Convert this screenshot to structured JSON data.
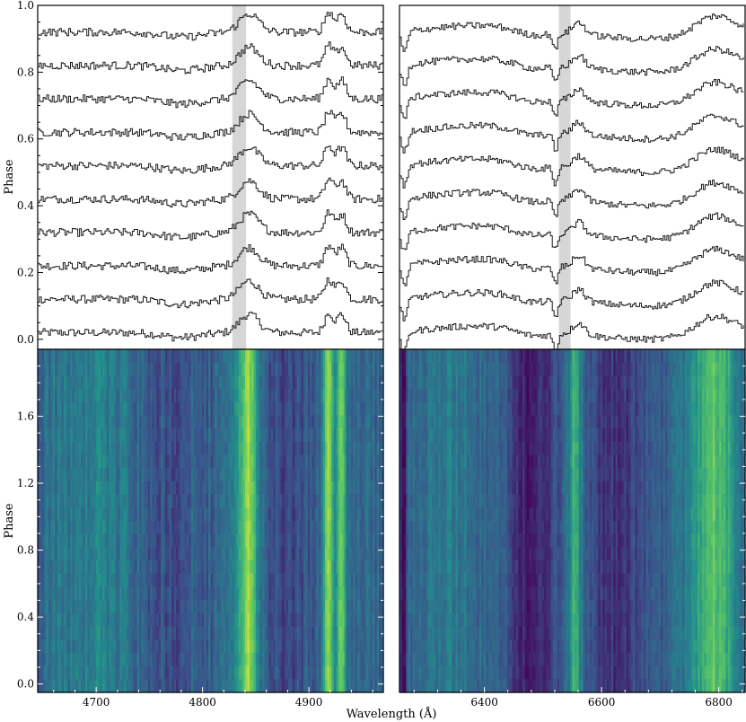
{
  "figure": {
    "xlabel": "Wavelength (Å)"
  },
  "colors": {
    "spectrum_line": "#1a1a1a",
    "highlight_band": "#b4b4b4",
    "frame": "#000000",
    "colormap": [
      "#440154",
      "#3b528b",
      "#21918c",
      "#5ec962",
      "#fde725"
    ]
  },
  "chart_data": [
    {
      "id": "top-left",
      "type": "line",
      "title": "",
      "xlabel": "",
      "ylabel": "Phase",
      "xlim": [
        4645,
        4970
      ],
      "ylim": [
        -0.03,
        1.0
      ],
      "yticks": [
        0.0,
        0.2,
        0.4,
        0.6,
        0.8,
        1.0
      ],
      "ytick_labels": [
        "0.0",
        "0.2",
        "0.4",
        "0.6",
        "0.8",
        "1.0"
      ],
      "offsets": [
        0.0,
        0.1,
        0.2,
        0.3,
        0.4,
        0.5,
        0.6,
        0.7,
        0.8,
        0.9
      ],
      "highlight_band": [
        4828,
        4841
      ],
      "features": [
        {
          "center": 4843,
          "width": 9,
          "depth": 0.055
        },
        {
          "center": 4918,
          "width": 4,
          "depth": 0.06
        },
        {
          "center": 4930,
          "width": 4,
          "depth": 0.055
        },
        {
          "center": 4780,
          "width": 18,
          "depth": -0.015
        }
      ],
      "noise": 0.012
    },
    {
      "id": "top-right",
      "type": "line",
      "title": "",
      "xlabel": "",
      "ylabel": "",
      "xlim": [
        6255,
        6845
      ],
      "ylim": [
        -0.03,
        1.0
      ],
      "offsets": [
        0.0,
        0.1,
        0.2,
        0.3,
        0.4,
        0.5,
        0.6,
        0.7,
        0.8,
        0.9
      ],
      "highlight_band": [
        6527,
        6547
      ],
      "features": [
        {
          "center": 6790,
          "width": 32,
          "depth": 0.055
        },
        {
          "center": 6560,
          "width": 10,
          "depth": 0.035
        },
        {
          "center": 6520,
          "width": 4,
          "depth": -0.05
        },
        {
          "center": 6480,
          "width": 30,
          "depth": -0.02
        },
        {
          "center": 6262,
          "width": 5,
          "depth": -0.06
        }
      ],
      "noise": 0.01
    },
    {
      "id": "bottom-left",
      "type": "heatmap",
      "title": "",
      "xlabel": "",
      "ylabel": "Phase",
      "xlim": [
        4645,
        4970
      ],
      "ylim": [
        -0.05,
        2.0
      ],
      "yticks": [
        0.0,
        0.4,
        0.8,
        1.2,
        1.6
      ],
      "ytick_labels": [
        "0.0",
        "0.4",
        "0.8",
        "1.2",
        "1.6"
      ],
      "xticks": [
        4700,
        4800,
        4900
      ],
      "xtick_labels": [
        "4700",
        "4800",
        "4900"
      ],
      "features": [
        {
          "center": 4843,
          "width": 7,
          "level": 0.55
        },
        {
          "center": 4918,
          "width": 3,
          "level": 0.55
        },
        {
          "center": 4930,
          "width": 3,
          "level": 0.5
        },
        {
          "center": 4700,
          "width": 30,
          "level": 0.12
        },
        {
          "center": 4765,
          "width": 20,
          "level": -0.08
        },
        {
          "center": 4880,
          "width": 15,
          "level": -0.1
        }
      ],
      "base_level": 0.32,
      "noise": 0.09
    },
    {
      "id": "bottom-right",
      "type": "heatmap",
      "title": "",
      "xlabel": "",
      "ylabel": "",
      "xlim": [
        6255,
        6845
      ],
      "ylim": [
        -0.05,
        2.0
      ],
      "xticks": [
        6400,
        6600,
        6800
      ],
      "xtick_labels": [
        "6400",
        "6600",
        "6800"
      ],
      "features": [
        {
          "center": 6790,
          "width": 28,
          "level": 0.42
        },
        {
          "center": 6555,
          "width": 8,
          "level": 0.35
        },
        {
          "center": 6340,
          "width": 40,
          "level": 0.12
        },
        {
          "center": 6480,
          "width": 25,
          "level": -0.22
        },
        {
          "center": 6620,
          "width": 35,
          "level": -0.15
        },
        {
          "center": 6262,
          "width": 4,
          "level": -0.3
        }
      ],
      "base_level": 0.3,
      "noise": 0.08
    }
  ]
}
